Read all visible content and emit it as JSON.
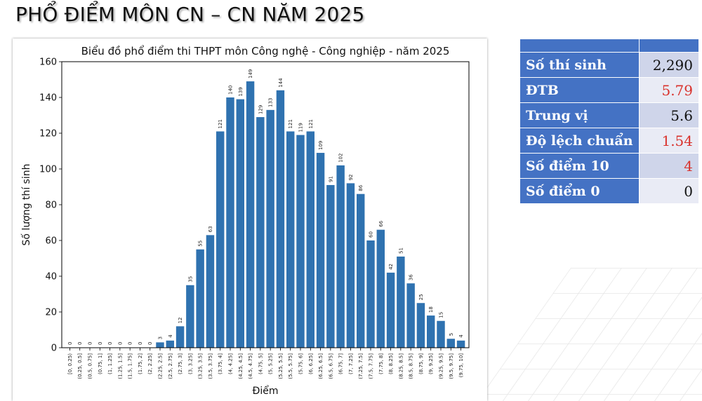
{
  "page": {
    "title": "PHỔ ĐIỂM MÔN CN – CN NĂM 2025"
  },
  "stats": {
    "rows": [
      {
        "label": "Số thí sinh",
        "value": "2,290",
        "highlight": false
      },
      {
        "label": "ĐTB",
        "value": "5.79",
        "highlight": true
      },
      {
        "label": "Trung vị",
        "value": "5.6",
        "highlight": false
      },
      {
        "label": "Độ lệch chuẩn",
        "value": "1.54",
        "highlight": true
      },
      {
        "label": "Số điểm 10",
        "value": "4",
        "highlight": true
      },
      {
        "label": "Số điểm 0",
        "value": "0",
        "highlight": false
      }
    ]
  },
  "colors": {
    "bar": "#2f72b0",
    "header": "#4472c4",
    "highlight": "#d9312b"
  },
  "chart_data": {
    "type": "bar",
    "title": "Biểu đồ phổ điểm thi THPT môn Công nghệ - Công nghiệp - năm 2025",
    "xlabel": "Điểm",
    "ylabel": "Số lượng thí sinh",
    "ylim": [
      0,
      160
    ],
    "yticks": [
      0,
      20,
      40,
      60,
      80,
      100,
      120,
      140,
      160
    ],
    "grid": false,
    "categories": [
      "[0, 0.25)",
      "(0.25, 0.5]",
      "(0.5, 0.75]",
      "(0.75, 1]",
      "(1, 1.25]",
      "(1.25, 1.5]",
      "(1.5, 1.75]",
      "(1.75, 2]",
      "(2, 2.25]",
      "(2.25, 2.5]",
      "(2.5, 2.75]",
      "(2.75, 3]",
      "(3, 3.25]",
      "(3.25, 3.5]",
      "(3.5, 3.75]",
      "(3.75, 4]",
      "(4, 4.25]",
      "(4.25, 4.5]",
      "(4.5, 4.75]",
      "(4.75, 5]",
      "(5, 5.25]",
      "(5.25, 5.5]",
      "(5.5, 5.75]",
      "(5.75, 6]",
      "(6, 6.25]",
      "(6.25, 6.5]",
      "(6.5, 6.75]",
      "(6.75, 7]",
      "(7, 7.25]",
      "(7.25, 7.5]",
      "(7.5, 7.75]",
      "(7.75, 8]",
      "(8, 8.25]",
      "(8.25, 8.5]",
      "(8.5, 8.75]",
      "(8.75, 9]",
      "(9, 9.25]",
      "(9.25, 9.5]",
      "(9.5, 9.75]",
      "(9.75, 10]"
    ],
    "values": [
      0,
      0,
      0,
      0,
      0,
      0,
      0,
      0,
      0,
      3,
      4,
      12,
      35,
      55,
      63,
      121,
      140,
      139,
      149,
      129,
      133,
      144,
      121,
      119,
      121,
      109,
      91,
      102,
      92,
      86,
      60,
      66,
      42,
      51,
      36,
      25,
      18,
      15,
      5,
      4
    ]
  }
}
